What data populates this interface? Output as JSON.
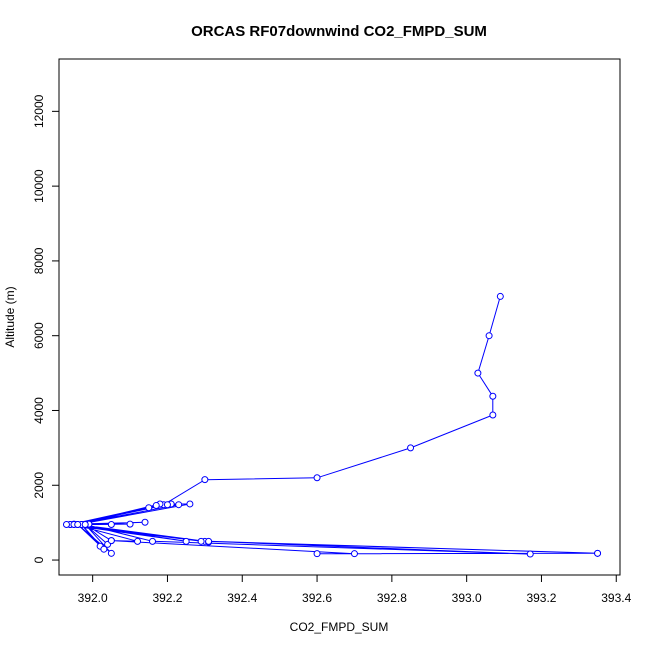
{
  "chart_data": {
    "type": "line",
    "title": "ORCAS RF07downwind CO2_FMPD_SUM",
    "xlabel": "CO2_FMPD_SUM",
    "ylabel": "Altitude (m)",
    "xlim": [
      391.91,
      393.41
    ],
    "ylim": [
      -400,
      13400
    ],
    "x_ticks": [
      392.0,
      392.2,
      392.4,
      392.6,
      392.8,
      393.0,
      393.2,
      393.4
    ],
    "x_tick_labels": [
      "392.0",
      "392.2",
      "392.4",
      "392.6",
      "392.8",
      "393.0",
      "393.2",
      "393.4"
    ],
    "y_ticks": [
      0,
      2000,
      4000,
      6000,
      8000,
      10000,
      12000
    ],
    "y_tick_labels": [
      "0",
      "2000",
      "4000",
      "6000",
      "8000",
      "10000",
      "12000"
    ],
    "grid": false,
    "color": "#0000ff",
    "series": [
      {
        "x": [
          393.09,
          393.06,
          393.03,
          393.07,
          393.07,
          392.85,
          392.6,
          392.3,
          392.19,
          392.15,
          391.96,
          392.26,
          392.18,
          391.95,
          392.23,
          392.17,
          391.94,
          392.21,
          392.2,
          391.95,
          392.14,
          391.99,
          392.1,
          391.97,
          392.05,
          391.96,
          392.3,
          391.94,
          392.31,
          391.93,
          392.25,
          391.95,
          392.12,
          392.05,
          391.98,
          392.04,
          392.02,
          391.97,
          392.03,
          391.96,
          392.05,
          391.98,
          392.16,
          393.17,
          392.31,
          393.35,
          392.29,
          393.35,
          392.6,
          392.7,
          392.05
        ],
        "y": [
          7050,
          6000,
          5000,
          4380,
          3880,
          3000,
          2200,
          2150,
          1480,
          1400,
          950,
          1500,
          1500,
          950,
          1480,
          1460,
          950,
          1500,
          1480,
          960,
          1010,
          960,
          960,
          950,
          950,
          950,
          500,
          950,
          480,
          950,
          500,
          950,
          500,
          520,
          950,
          420,
          370,
          950,
          290,
          950,
          180,
          950,
          500,
          160,
          500,
          180,
          500,
          180,
          170,
          170,
          520
        ]
      }
    ]
  }
}
